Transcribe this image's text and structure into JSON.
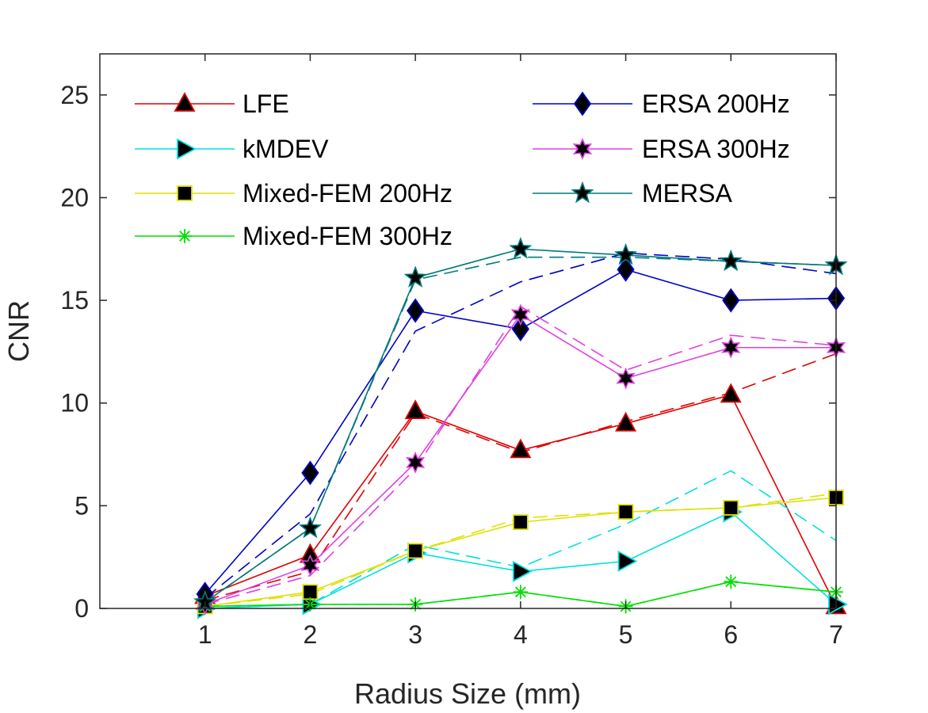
{
  "chart_data": {
    "type": "line",
    "xlabel": "Radius Size (mm)",
    "ylabel": "CNR",
    "xlim": [
      0,
      7
    ],
    "ylim": [
      0,
      27
    ],
    "xticks": [
      1,
      2,
      3,
      4,
      5,
      6,
      7
    ],
    "yticks": [
      0,
      5,
      10,
      15,
      20,
      25
    ],
    "x": [
      1,
      2,
      3,
      4,
      5,
      6,
      7
    ],
    "legend_position": "top-left, two columns",
    "series": [
      {
        "name": "LFE",
        "color": "#e00000",
        "marker": "triangle-up",
        "values": [
          0.6,
          2.6,
          9.6,
          7.7,
          9.0,
          10.4,
          0.1
        ],
        "dashed_values": [
          0.4,
          1.8,
          9.5,
          7.6,
          9.1,
          10.5,
          12.4
        ]
      },
      {
        "name": "kMDEV",
        "color": "#00e0e0",
        "marker": "triangle-right",
        "values": [
          0.0,
          0.2,
          2.7,
          1.8,
          2.3,
          4.7,
          0.2
        ],
        "dashed_values": [
          0.0,
          0.2,
          3.1,
          2.0,
          4.1,
          6.7,
          3.3
        ]
      },
      {
        "name": "Mixed-FEM 200Hz",
        "color": "#e0e000",
        "marker": "square",
        "values": [
          0.1,
          0.8,
          2.8,
          4.2,
          4.7,
          4.9,
          5.4
        ],
        "dashed_values": [
          0.1,
          0.7,
          2.8,
          4.4,
          4.7,
          4.9,
          5.6
        ]
      },
      {
        "name": "Mixed-FEM 300Hz",
        "color": "#00e000",
        "marker": "asterisk",
        "values": [
          0.1,
          0.2,
          0.2,
          0.8,
          0.1,
          1.3,
          0.8
        ],
        "dashed_values": [
          0.1,
          0.2,
          0.2,
          0.8,
          0.1,
          1.3,
          0.8
        ]
      },
      {
        "name": "ERSA 200Hz",
        "color": "#0000c8",
        "marker": "diamond",
        "values": [
          0.7,
          6.6,
          14.5,
          13.6,
          16.5,
          15.0,
          15.1
        ],
        "dashed_values": [
          0.5,
          4.6,
          13.5,
          15.9,
          17.3,
          17.0,
          16.3
        ]
      },
      {
        "name": "ERSA 300Hz",
        "color": "#e040e0",
        "marker": "hexagram",
        "values": [
          0.2,
          2.1,
          7.1,
          14.3,
          11.2,
          12.7,
          12.7
        ],
        "dashed_values": [
          0.2,
          1.6,
          6.8,
          14.7,
          11.6,
          13.3,
          12.8
        ]
      },
      {
        "name": "MERSA",
        "color": "#007a7a",
        "marker": "pentagram",
        "values": [
          0.3,
          3.9,
          16.1,
          17.5,
          17.2,
          16.9,
          16.7
        ],
        "dashed_values": [
          0.3,
          3.9,
          16.0,
          17.1,
          17.1,
          16.9,
          16.7
        ]
      }
    ]
  }
}
